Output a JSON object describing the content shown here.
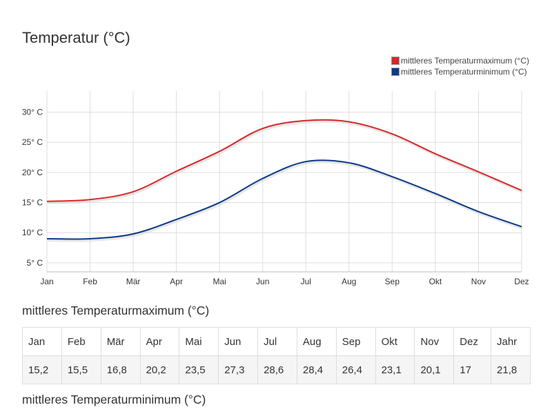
{
  "page_title": "Temperatur (°C)",
  "legend": [
    {
      "label": "mittleres Temperaturmaximum (°C)",
      "color": "#d62728"
    },
    {
      "label": "mittleres Temperaturminimum (°C)",
      "color": "#0b3a86"
    }
  ],
  "chart_data": {
    "type": "line",
    "title": "Temperatur (°C)",
    "categories": [
      "Jan",
      "Feb",
      "Mär",
      "Apr",
      "Mai",
      "Jun",
      "Jul",
      "Aug",
      "Sep",
      "Okt",
      "Nov",
      "Dez"
    ],
    "y_ticks": [
      5,
      10,
      15,
      20,
      25,
      30
    ],
    "y_tick_labels": [
      "5° C",
      "10° C",
      "15° C",
      "20° C",
      "25° C",
      "30° C"
    ],
    "ylim": [
      3.5,
      33.5
    ],
    "grid": true,
    "legend_position": "top-right",
    "series": [
      {
        "name": "mittleres Temperaturmaximum (°C)",
        "color": "#d62728",
        "values": [
          15.2,
          15.5,
          16.8,
          20.2,
          23.5,
          27.3,
          28.6,
          28.4,
          26.4,
          23.1,
          20.1,
          17
        ]
      },
      {
        "name": "mittleres Temperaturminimum (°C)",
        "color": "#0b3a86",
        "values": [
          9,
          9,
          9.8,
          12.2,
          15,
          19,
          21.8,
          21.6,
          19.3,
          16.5,
          13.5,
          11
        ]
      }
    ]
  },
  "table_max": {
    "title": "mittleres Temperaturmaximum (°C)",
    "headers": [
      "Jan",
      "Feb",
      "Mär",
      "Apr",
      "Mai",
      "Jun",
      "Jul",
      "Aug",
      "Sep",
      "Okt",
      "Nov",
      "Dez",
      "Jahr"
    ],
    "values": [
      "15,2",
      "15,5",
      "16,8",
      "20,2",
      "23,5",
      "27,3",
      "28,6",
      "28,4",
      "26,4",
      "23,1",
      "20,1",
      "17",
      "21,8"
    ]
  },
  "table_min": {
    "title": "mittleres Temperaturminimum (°C)"
  }
}
